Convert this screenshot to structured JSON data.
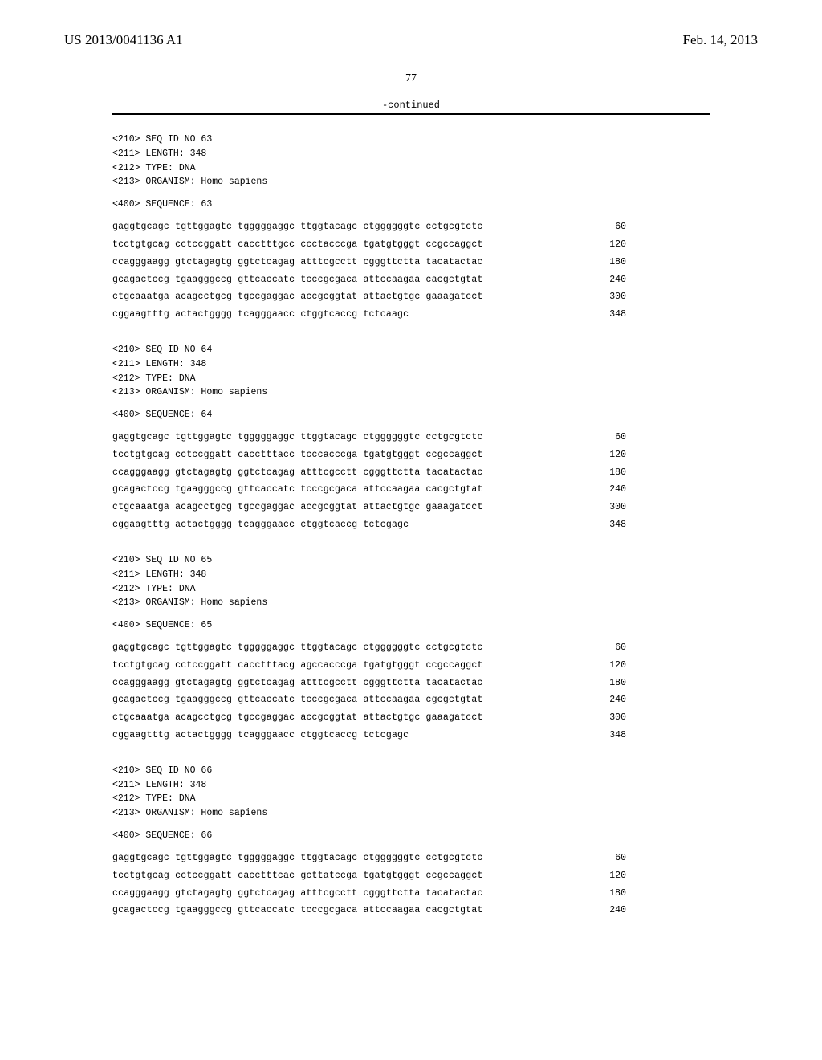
{
  "header": {
    "left": "US 2013/0041136 A1",
    "right": "Feb. 14, 2013"
  },
  "page_number": "77",
  "continued_label": "-continued",
  "sequences": [
    {
      "meta": [
        "<210> SEQ ID NO 63",
        "<211> LENGTH: 348",
        "<212> TYPE: DNA",
        "<213> ORGANISM: Homo sapiens"
      ],
      "head": "<400> SEQUENCE: 63",
      "lines": [
        {
          "seq": "gaggtgcagc tgttggagtc tgggggaggc ttggtacagc ctggggggtc cctgcgtctc",
          "pos": "60"
        },
        {
          "seq": "tcctgtgcag cctccggatt cacctttgcc ccctacccga tgatgtgggt ccgccaggct",
          "pos": "120"
        },
        {
          "seq": "ccagggaagg gtctagagtg ggtctcagag atttcgcctt cgggttctta tacatactac",
          "pos": "180"
        },
        {
          "seq": "gcagactccg tgaagggccg gttcaccatc tcccgcgaca attccaagaa cacgctgtat",
          "pos": "240"
        },
        {
          "seq": "ctgcaaatga acagcctgcg tgccgaggac accgcggtat attactgtgc gaaagatcct",
          "pos": "300"
        },
        {
          "seq": "cggaagtttg actactgggg tcagggaacc ctggtcaccg tctcaagc",
          "pos": "348"
        }
      ]
    },
    {
      "meta": [
        "<210> SEQ ID NO 64",
        "<211> LENGTH: 348",
        "<212> TYPE: DNA",
        "<213> ORGANISM: Homo sapiens"
      ],
      "head": "<400> SEQUENCE: 64",
      "lines": [
        {
          "seq": "gaggtgcagc tgttggagtc tgggggaggc ttggtacagc ctggggggtc cctgcgtctc",
          "pos": "60"
        },
        {
          "seq": "tcctgtgcag cctccggatt cacctttacc tcccacccga tgatgtgggt ccgccaggct",
          "pos": "120"
        },
        {
          "seq": "ccagggaagg gtctagagtg ggtctcagag atttcgcctt cgggttctta tacatactac",
          "pos": "180"
        },
        {
          "seq": "gcagactccg tgaagggccg gttcaccatc tcccgcgaca attccaagaa cacgctgtat",
          "pos": "240"
        },
        {
          "seq": "ctgcaaatga acagcctgcg tgccgaggac accgcggtat attactgtgc gaaagatcct",
          "pos": "300"
        },
        {
          "seq": "cggaagtttg actactgggg tcagggaacc ctggtcaccg tctcgagc",
          "pos": "348"
        }
      ]
    },
    {
      "meta": [
        "<210> SEQ ID NO 65",
        "<211> LENGTH: 348",
        "<212> TYPE: DNA",
        "<213> ORGANISM: Homo sapiens"
      ],
      "head": "<400> SEQUENCE: 65",
      "lines": [
        {
          "seq": "gaggtgcagc tgttggagtc tgggggaggc ttggtacagc ctggggggtc cctgcgtctc",
          "pos": "60"
        },
        {
          "seq": "tcctgtgcag cctccggatt cacctttacg agccacccga tgatgtgggt ccgccaggct",
          "pos": "120"
        },
        {
          "seq": "ccagggaagg gtctagagtg ggtctcagag atttcgcctt cgggttctta tacatactac",
          "pos": "180"
        },
        {
          "seq": "gcagactccg tgaagggccg gttcaccatc tcccgcgaca attccaagaa cgcgctgtat",
          "pos": "240"
        },
        {
          "seq": "ctgcaaatga acagcctgcg tgccgaggac accgcggtat attactgtgc gaaagatcct",
          "pos": "300"
        },
        {
          "seq": "cggaagtttg actactgggg tcagggaacc ctggtcaccg tctcgagc",
          "pos": "348"
        }
      ]
    },
    {
      "meta": [
        "<210> SEQ ID NO 66",
        "<211> LENGTH: 348",
        "<212> TYPE: DNA",
        "<213> ORGANISM: Homo sapiens"
      ],
      "head": "<400> SEQUENCE: 66",
      "lines": [
        {
          "seq": "gaggtgcagc tgttggagtc tgggggaggc ttggtacagc ctggggggtc cctgcgtctc",
          "pos": "60"
        },
        {
          "seq": "tcctgtgcag cctccggatt cacctttcac gcttatccga tgatgtgggt ccgccaggct",
          "pos": "120"
        },
        {
          "seq": "ccagggaagg gtctagagtg ggtctcagag atttcgcctt cgggttctta tacatactac",
          "pos": "180"
        },
        {
          "seq": "gcagactccg tgaagggccg gttcaccatc tcccgcgaca attccaagaa cacgctgtat",
          "pos": "240"
        }
      ]
    }
  ]
}
